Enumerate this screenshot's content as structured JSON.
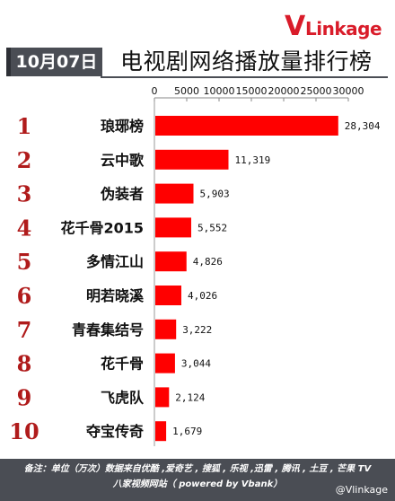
{
  "brand": {
    "logo_v": "V",
    "logo_rest": "Linkage",
    "accent": "#d91c2a"
  },
  "header": {
    "date": "10月07日",
    "title": "电视剧网络播放量排行榜"
  },
  "chart_data": {
    "type": "bar",
    "orientation": "horizontal",
    "ranks": [
      "1",
      "2",
      "3",
      "4",
      "5",
      "6",
      "7",
      "8",
      "9",
      "10"
    ],
    "categories": [
      "琅琊榜",
      "云中歌",
      "伪装者",
      "花千骨2015",
      "多情江山",
      "明若晓溪",
      "青春集结号",
      "花千骨",
      "飞虎队",
      "夺宝传奇"
    ],
    "values": [
      28304,
      11319,
      5903,
      5552,
      4826,
      4026,
      3222,
      3044,
      2124,
      1679
    ],
    "value_labels": [
      "28,304",
      "11,319",
      "5,903",
      "5,552",
      "4,826",
      "4,026",
      "3,222",
      "3,044",
      "2,124",
      "1,679"
    ],
    "xlim": [
      0,
      30000
    ],
    "xticks": [
      0,
      5000,
      10000,
      15000,
      20000,
      25000,
      30000
    ],
    "xtick_labels": [
      "0",
      "5000",
      "10000",
      "15000",
      "20000",
      "25000",
      "30000"
    ],
    "axis_position": "top",
    "bar_color": "#ff0000",
    "rank_color": "#b01b1b"
  },
  "footer": {
    "note_line1": "备注：单位（万次）数据来自优酷 ,爱奇艺 , 搜狐 , 乐视 ,迅雷 , 腾讯 , 土豆 , 芒果 TV",
    "note_line2": "八家视频网站（ powered by Vbank）",
    "handle": "@Vlinkage"
  }
}
